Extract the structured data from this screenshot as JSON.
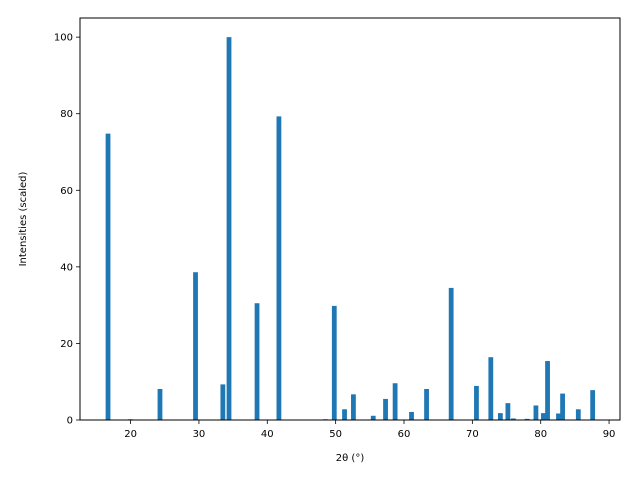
{
  "chart_data": {
    "type": "bar",
    "title": "",
    "xlabel": "2θ (°)",
    "ylabel": "Intensities (scaled)",
    "xlim": [
      12.6,
      91.6
    ],
    "ylim": [
      0,
      105
    ],
    "xticks": [
      20,
      30,
      40,
      50,
      60,
      70,
      80,
      90
    ],
    "yticks": [
      0,
      20,
      40,
      60,
      80,
      100
    ],
    "bar_width": 0.7,
    "color": "#1f77b4",
    "grid": false,
    "legend": "none",
    "x": [
      16.7,
      20.0,
      24.3,
      29.5,
      33.5,
      34.4,
      38.5,
      41.7,
      48.5,
      49.8,
      51.3,
      52.6,
      55.5,
      57.3,
      58.7,
      61.1,
      63.3,
      66.9,
      70.6,
      72.7,
      74.1,
      75.2,
      76.0,
      78.0,
      79.3,
      80.4,
      81.0,
      82.6,
      83.2,
      85.5,
      87.6
    ],
    "values": [
      74.8,
      0.2,
      8.1,
      38.6,
      9.3,
      100.0,
      30.5,
      79.3,
      0.2,
      29.8,
      2.8,
      6.7,
      1.1,
      5.5,
      9.6,
      2.1,
      8.1,
      34.5,
      8.9,
      16.4,
      1.8,
      4.4,
      0.4,
      0.3,
      3.8,
      1.8,
      15.4,
      1.7,
      6.9,
      2.8,
      7.8
    ]
  }
}
